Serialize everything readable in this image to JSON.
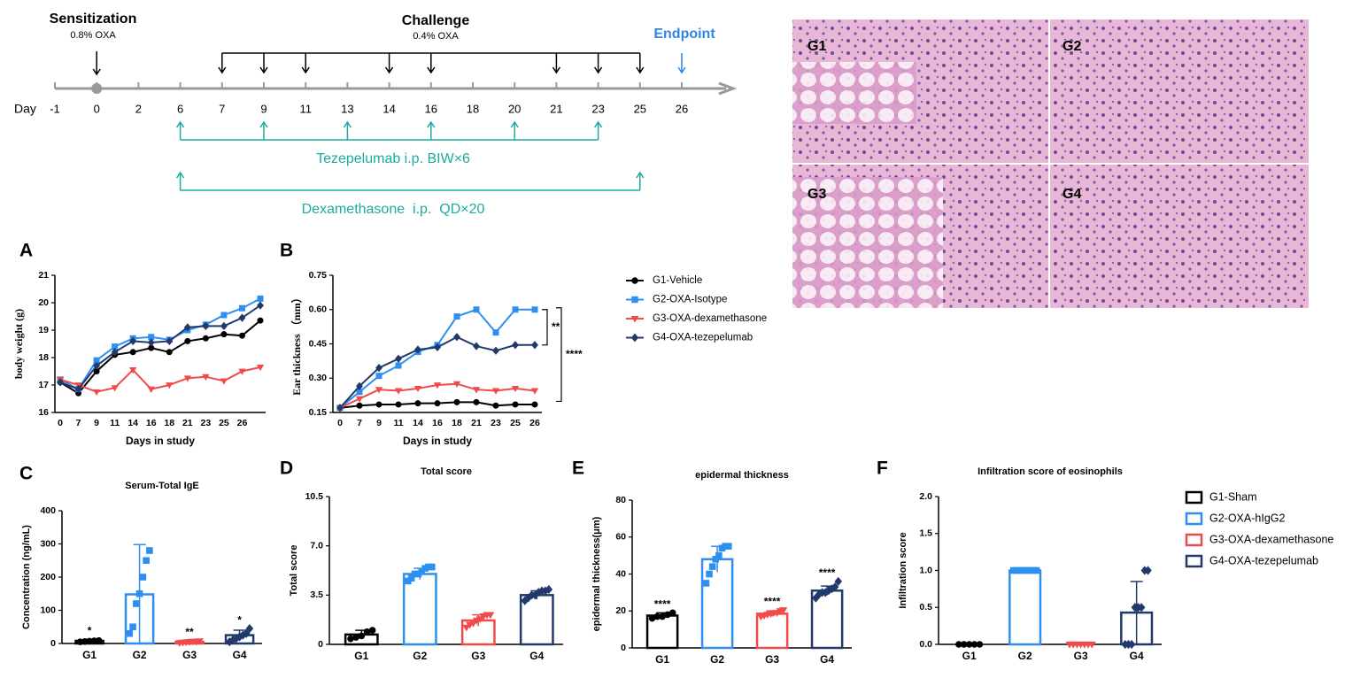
{
  "timeline": {
    "day_label": "Day",
    "days": [
      -1,
      0,
      2,
      6,
      7,
      9,
      11,
      13,
      14,
      16,
      18,
      20,
      21,
      23,
      25,
      26
    ],
    "sensitization": {
      "title": "Sensitization",
      "dose": "0.8% OXA",
      "days": [
        0
      ]
    },
    "challenge": {
      "title": "Challenge",
      "dose": "0.4% OXA",
      "days": [
        7,
        9,
        11,
        14,
        16,
        21,
        23,
        25
      ]
    },
    "endpoint": {
      "title": "Endpoint",
      "days": [
        26
      ]
    },
    "treatments": [
      {
        "label": "Tezepelumab i.p. BIW×6",
        "days": [
          6,
          9,
          13,
          16,
          20,
          23
        ]
      },
      {
        "label": "Dexamethasone  i.p.  QD×20",
        "days": [
          6,
          25
        ]
      }
    ]
  },
  "histology": {
    "labels": [
      "G1",
      "G2",
      "G3",
      "G4"
    ]
  },
  "chart_data": [
    {
      "type": "line",
      "panel": "A",
      "xlabel": "Days in study",
      "ylabel": "body weight (g)",
      "categories": [
        "0",
        "7",
        "9",
        "11",
        "14",
        "16",
        "18",
        "21",
        "23",
        "25",
        "26",
        null
      ],
      "ylim": [
        16,
        21
      ],
      "yticks": [
        16,
        17,
        18,
        19,
        20,
        21
      ],
      "series": [
        {
          "color": "#000000",
          "marker": "circle",
          "values": [
            17.1,
            16.7,
            17.5,
            18.1,
            18.2,
            18.35,
            18.2,
            18.6,
            18.7,
            18.85,
            18.8,
            19.35
          ]
        },
        {
          "color": "#2f8ff0",
          "marker": "square",
          "values": [
            17.2,
            16.85,
            17.9,
            18.4,
            18.7,
            18.75,
            18.65,
            19.0,
            19.2,
            19.55,
            19.8,
            20.15
          ]
        },
        {
          "color": "#f04a4a",
          "marker": "triangle",
          "values": [
            17.2,
            17.0,
            16.75,
            16.9,
            17.55,
            16.85,
            17.0,
            17.25,
            17.3,
            17.15,
            17.5,
            17.65
          ]
        },
        {
          "color": "#223a6b",
          "marker": "diamond",
          "values": [
            17.1,
            16.85,
            17.7,
            18.2,
            18.6,
            18.55,
            18.6,
            19.1,
            19.15,
            19.15,
            19.45,
            19.9
          ]
        }
      ]
    },
    {
      "type": "line",
      "panel": "B",
      "xlabel": "Days in study",
      "ylabel": "Ear thickness （mm）",
      "categories": [
        "0",
        "7",
        "9",
        "11",
        "14",
        "16",
        "18",
        "21",
        "23",
        "25",
        "26"
      ],
      "ylim": [
        0.15,
        0.75
      ],
      "yticks": [
        0.15,
        {
          "value": 0.3,
          "label": "0.30"
        },
        0.45,
        {
          "value": 0.6,
          "label": "0.60"
        },
        0.75
      ],
      "legend": "right",
      "annotations": [
        "**",
        "****"
      ],
      "series": [
        {
          "name": "G1-Vehicle",
          "color": "#000000",
          "marker": "circle",
          "values": [
            0.17,
            0.18,
            0.185,
            0.185,
            0.19,
            0.19,
            0.195,
            0.195,
            0.18,
            0.185,
            0.185
          ]
        },
        {
          "name": "G2-OXA-Isotype",
          "color": "#2f8ff0",
          "marker": "square",
          "values": [
            0.17,
            0.24,
            0.31,
            0.355,
            0.415,
            0.445,
            0.57,
            0.6,
            0.5,
            0.6,
            0.6
          ]
        },
        {
          "name": "G3-OXA-dexamethasone",
          "color": "#f04a4a",
          "marker": "triangle",
          "values": [
            0.17,
            0.21,
            0.25,
            0.245,
            0.255,
            0.27,
            0.275,
            0.25,
            0.245,
            0.255,
            0.245
          ]
        },
        {
          "name": "G4-OXA-tezepelumab",
          "color": "#223a6b",
          "marker": "diamond",
          "values": [
            0.17,
            0.265,
            0.345,
            0.385,
            0.425,
            0.435,
            0.48,
            0.44,
            0.42,
            0.445,
            0.445
          ]
        }
      ]
    },
    {
      "type": "bar",
      "panel": "C",
      "title": "Serum-Total IgE",
      "ylabel": "Concentration (ng/mL)",
      "categories": [
        "G1",
        "G2",
        "G3",
        "G4"
      ],
      "values": [
        8,
        148,
        5,
        25
      ],
      "errors": [
        4,
        150,
        3,
        15
      ],
      "annotations": [
        "*",
        null,
        "**",
        "*"
      ],
      "colors": [
        "#000000",
        "#2f8ff0",
        "#f04a4a",
        "#223a6b"
      ],
      "markers": [
        "circle",
        "square",
        "triangle",
        "diamond"
      ],
      "points": [
        [
          5,
          6,
          7,
          8,
          9
        ],
        [
          30,
          50,
          120,
          150,
          200,
          250,
          280
        ],
        [
          2,
          3,
          4,
          5,
          6,
          6,
          7
        ],
        [
          5,
          10,
          15,
          20,
          25,
          30,
          45
        ]
      ],
      "ylim": [
        0,
        400
      ],
      "yticks": [
        0,
        100,
        200,
        300,
        400
      ]
    },
    {
      "type": "bar",
      "panel": "D",
      "title": "Total score",
      "ylabel": "Total score",
      "categories": [
        "G1",
        "G2",
        "G3",
        "G4"
      ],
      "values": [
        0.7,
        5.0,
        1.7,
        3.5
      ],
      "errors": [
        0.3,
        0.4,
        0.4,
        0.3
      ],
      "colors": [
        "#000000",
        "#2f8ff0",
        "#f04a4a",
        "#223a6b"
      ],
      "markers": [
        "circle",
        "square",
        "triangle",
        "diamond"
      ],
      "points": [
        [
          0.4,
          0.5,
          0.6,
          0.9,
          1.0
        ],
        [
          4.5,
          4.7,
          5,
          5,
          5.2,
          5.4,
          5.5,
          5.5
        ],
        [
          1.2,
          1.4,
          1.5,
          1.7,
          1.8,
          2,
          2.1,
          2.1
        ],
        [
          3.1,
          3.3,
          3.5,
          3.5,
          3.7,
          3.8,
          3.8,
          3.9
        ]
      ],
      "ylim": [
        0,
        10.5
      ],
      "yticks": [
        0,
        3.5,
        {
          "value": 7,
          "label": "7.0"
        },
        10.5
      ]
    },
    {
      "type": "bar",
      "panel": "E",
      "title": "epidermal thickness",
      "ylabel": "epidermal thickness(μm)",
      "categories": [
        "G1",
        "G2",
        "G3",
        "G4"
      ],
      "values": [
        17.5,
        48,
        18.5,
        31
      ],
      "errors": [
        1.5,
        7,
        1.5,
        2.5
      ],
      "annotations": [
        "****",
        null,
        "****",
        "****"
      ],
      "colors": [
        "#000000",
        "#2f8ff0",
        "#f04a4a",
        "#223a6b"
      ],
      "markers": [
        "circle",
        "square",
        "triangle",
        "diamond"
      ],
      "points": [
        [
          16,
          17,
          17,
          18,
          19
        ],
        [
          35,
          40,
          44,
          48,
          50,
          54,
          55,
          55
        ],
        [
          17,
          17.5,
          18,
          18.5,
          19,
          19,
          20,
          20.5
        ],
        [
          27,
          29,
          30,
          30,
          31,
          32,
          33,
          36
        ]
      ],
      "ylim": [
        0,
        80
      ],
      "yticks": [
        0,
        20,
        40,
        60,
        80
      ]
    },
    {
      "type": "bar",
      "panel": "F",
      "title": "Infiltration score of eosinophils",
      "ylabel": "Infiltration score",
      "categories": [
        "G1",
        "G2",
        "G3",
        "G4"
      ],
      "values": [
        0,
        1,
        0,
        0.43
      ],
      "errors": [
        0,
        0,
        0,
        0.42
      ],
      "colors": [
        "#000000",
        "#2f8ff0",
        "#f04a4a",
        "#223a6b"
      ],
      "markers": [
        "circle",
        "square",
        "triangle",
        "diamond"
      ],
      "points": [
        [
          0,
          0,
          0,
          0,
          0
        ],
        [
          1,
          1,
          1,
          1,
          1,
          1,
          1,
          1
        ],
        [
          0,
          0,
          0,
          0,
          0,
          0,
          0
        ],
        [
          0,
          0,
          0,
          0.5,
          0.5,
          0.5,
          1,
          1
        ]
      ],
      "legend": [
        "G1-Sham",
        "G2-OXA-hIgG2",
        "G3-OXA-dexamethasone",
        "G4-OXA-tezepelumab"
      ],
      "ylim": [
        0,
        2
      ],
      "yticks": [
        {
          "value": 0,
          "label": "0.0"
        },
        0.5,
        {
          "value": 1,
          "label": "1.0"
        },
        1.5,
        {
          "value": 2,
          "label": "2.0"
        }
      ]
    }
  ]
}
